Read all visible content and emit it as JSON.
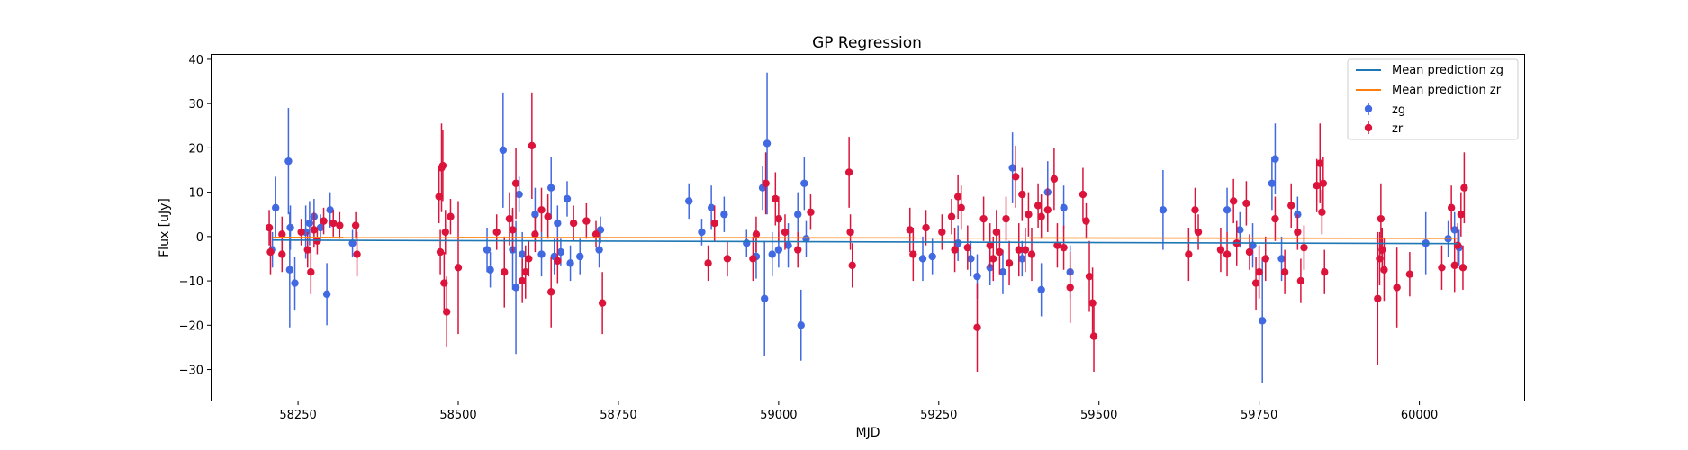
{
  "chart_data": {
    "type": "scatter",
    "title": "GP Regression",
    "xlabel": "MJD",
    "ylabel": "Flux [uJy]",
    "xlim": [
      58115,
      60165
    ],
    "ylim": [
      -37,
      41
    ],
    "x_ticks": [
      58250,
      58500,
      58750,
      59000,
      59250,
      59500,
      59750,
      60000
    ],
    "y_ticks": [
      -30,
      -20,
      -10,
      0,
      10,
      20,
      30,
      40
    ],
    "grid": false,
    "legend_position": "top-right",
    "colors": {
      "zg": "#4169e1",
      "zr": "#dc143c",
      "mean_zg": "#1f77b4",
      "mean_zr": "#ff7f0e"
    },
    "lines": [
      {
        "name": "Mean prediction zg",
        "color": "#1f77b4",
        "x": [
          58210,
          60060
        ],
        "y": [
          -0.8,
          -1.6
        ]
      },
      {
        "name": "Mean prediction zr",
        "color": "#ff7f0e",
        "x": [
          58210,
          60060
        ],
        "y": [
          -0.2,
          -0.4
        ]
      }
    ],
    "series": [
      {
        "name": "zg",
        "color": "#4169e1",
        "points": [
          [
            58210,
            -3,
            4
          ],
          [
            58215,
            6.5,
            7
          ],
          [
            58235,
            17,
            12
          ],
          [
            58237,
            -7.5,
            13
          ],
          [
            58238,
            2,
            5
          ],
          [
            58245,
            -10.5,
            6
          ],
          [
            58262,
            1,
            6
          ],
          [
            58268,
            3,
            5
          ],
          [
            58275,
            4.5,
            4
          ],
          [
            58285,
            2,
            3
          ],
          [
            58295,
            -13,
            7
          ],
          [
            58300,
            6,
            4
          ],
          [
            58335,
            -1.5,
            3
          ],
          [
            58545,
            -3,
            5
          ],
          [
            58550,
            -7.5,
            4
          ],
          [
            58570,
            19.5,
            13
          ],
          [
            58585,
            -3,
            9
          ],
          [
            58590,
            -11.5,
            15
          ],
          [
            58595,
            9.5,
            4
          ],
          [
            58600,
            -4,
            5
          ],
          [
            58620,
            5,
            6
          ],
          [
            58630,
            -4,
            5
          ],
          [
            58645,
            11,
            7
          ],
          [
            58650,
            -4.5,
            4
          ],
          [
            58655,
            3,
            4
          ],
          [
            58660,
            -3.5,
            3
          ],
          [
            58670,
            8.5,
            4
          ],
          [
            58675,
            -6,
            4
          ],
          [
            58690,
            -4.5,
            4
          ],
          [
            58720,
            -3,
            4
          ],
          [
            58722,
            1.5,
            3
          ],
          [
            58860,
            8,
            4
          ],
          [
            58880,
            1,
            3
          ],
          [
            58895,
            6.5,
            5
          ],
          [
            58915,
            5,
            4
          ],
          [
            58950,
            -1.5,
            3
          ],
          [
            58965,
            -4.5,
            5
          ],
          [
            58975,
            11,
            5
          ],
          [
            58978,
            -14,
            13
          ],
          [
            58982,
            21,
            16
          ],
          [
            58990,
            -4,
            5
          ],
          [
            59000,
            -3,
            4
          ],
          [
            59015,
            -2,
            5
          ],
          [
            59030,
            5,
            5
          ],
          [
            59035,
            -20,
            8
          ],
          [
            59040,
            12,
            6
          ],
          [
            59043,
            -0.5,
            4
          ],
          [
            59225,
            -5,
            5
          ],
          [
            59240,
            -4.5,
            4
          ],
          [
            59280,
            -1.5,
            4
          ],
          [
            59300,
            -5,
            4
          ],
          [
            59310,
            -9,
            5
          ],
          [
            59330,
            -7,
            4
          ],
          [
            59350,
            -8,
            5
          ],
          [
            59365,
            15.5,
            8
          ],
          [
            59380,
            -5,
            4
          ],
          [
            59410,
            -12,
            6
          ],
          [
            59420,
            10,
            7
          ],
          [
            59445,
            6.5,
            5
          ],
          [
            59455,
            -8,
            6
          ],
          [
            59600,
            6,
            9
          ],
          [
            59700,
            6,
            5
          ],
          [
            59720,
            1.5,
            4
          ],
          [
            59740,
            -2,
            5
          ],
          [
            59755,
            -19,
            14
          ],
          [
            59770,
            12,
            6
          ],
          [
            59775,
            17.5,
            8
          ],
          [
            59785,
            -5,
            5
          ],
          [
            59810,
            5,
            4
          ],
          [
            60010,
            -1.5,
            7
          ],
          [
            60045,
            -0.5,
            4
          ],
          [
            60055,
            1.5,
            4
          ],
          [
            60062,
            -2.5,
            4
          ]
        ]
      },
      {
        "name": "zr",
        "color": "#dc143c",
        "points": [
          [
            58205,
            2,
            4
          ],
          [
            58207,
            -3.5,
            5
          ],
          [
            58225,
            0.5,
            4
          ],
          [
            58225,
            -4,
            4
          ],
          [
            58255,
            1,
            3
          ],
          [
            58265,
            -3,
            4
          ],
          [
            58270,
            -8,
            5
          ],
          [
            58275,
            1.5,
            4
          ],
          [
            58280,
            -1,
            3
          ],
          [
            58290,
            3.5,
            3
          ],
          [
            58305,
            3,
            3
          ],
          [
            58315,
            2.5,
            3
          ],
          [
            58340,
            2.5,
            3
          ],
          [
            58342,
            -4,
            5
          ],
          [
            58470,
            9,
            6
          ],
          [
            58472,
            -3.5,
            5
          ],
          [
            58474,
            15.5,
            10
          ],
          [
            58476,
            16,
            8
          ],
          [
            58478,
            -10.5,
            7
          ],
          [
            58480,
            1,
            5
          ],
          [
            58482,
            -17,
            8
          ],
          [
            58488,
            4.5,
            4
          ],
          [
            58500,
            -7,
            15
          ],
          [
            58560,
            1,
            4
          ],
          [
            58572,
            -8,
            8
          ],
          [
            58580,
            4,
            6
          ],
          [
            58585,
            1.5,
            5
          ],
          [
            58590,
            12,
            8
          ],
          [
            58600,
            -10,
            5
          ],
          [
            58605,
            -8,
            6
          ],
          [
            58610,
            -5,
            4
          ],
          [
            58615,
            20.5,
            12
          ],
          [
            58620,
            0.5,
            4
          ],
          [
            58630,
            6,
            5
          ],
          [
            58640,
            4.5,
            5
          ],
          [
            58645,
            -12.5,
            8
          ],
          [
            58655,
            -5.5,
            5
          ],
          [
            58680,
            3,
            4
          ],
          [
            58700,
            3.5,
            4
          ],
          [
            58715,
            0.5,
            3
          ],
          [
            58725,
            -15,
            7
          ],
          [
            58890,
            -6,
            4
          ],
          [
            58900,
            3,
            4
          ],
          [
            58920,
            -5,
            4
          ],
          [
            58960,
            -5,
            5
          ],
          [
            58965,
            0.5,
            4
          ],
          [
            58980,
            12,
            7
          ],
          [
            58995,
            8.5,
            6
          ],
          [
            59000,
            4,
            5
          ],
          [
            59010,
            1,
            4
          ],
          [
            59030,
            -3,
            4
          ],
          [
            59050,
            5.5,
            4
          ],
          [
            59110,
            14.5,
            8
          ],
          [
            59112,
            1,
            4
          ],
          [
            59115,
            -6.5,
            5
          ],
          [
            59205,
            1.5,
            5
          ],
          [
            59210,
            -4,
            6
          ],
          [
            59230,
            2,
            4
          ],
          [
            59255,
            1,
            4
          ],
          [
            59270,
            4.5,
            4
          ],
          [
            59275,
            -3,
            5
          ],
          [
            59280,
            9,
            5
          ],
          [
            59285,
            6.5,
            5
          ],
          [
            59295,
            -2.5,
            5
          ],
          [
            59310,
            -20.5,
            10
          ],
          [
            59320,
            4,
            5
          ],
          [
            59330,
            -2,
            5
          ],
          [
            59335,
            -5,
            5
          ],
          [
            59340,
            1,
            5
          ],
          [
            59345,
            -3.5,
            5
          ],
          [
            59355,
            4,
            5
          ],
          [
            59360,
            -6,
            5
          ],
          [
            59370,
            13.5,
            7
          ],
          [
            59375,
            -3,
            6
          ],
          [
            59380,
            9.5,
            6
          ],
          [
            59385,
            -3,
            5
          ],
          [
            59390,
            5,
            5
          ],
          [
            59395,
            -4,
            6
          ],
          [
            59405,
            7,
            5
          ],
          [
            59410,
            4.5,
            5
          ],
          [
            59420,
            6,
            5
          ],
          [
            59430,
            13,
            7
          ],
          [
            59435,
            -2,
            5
          ],
          [
            59445,
            -2.5,
            5
          ],
          [
            59455,
            -11.5,
            8
          ],
          [
            59475,
            9.5,
            6
          ],
          [
            59480,
            3.5,
            4
          ],
          [
            59485,
            -9,
            8
          ],
          [
            59490,
            -15,
            8
          ],
          [
            59492,
            -22.5,
            8
          ],
          [
            59640,
            -4,
            6
          ],
          [
            59650,
            6,
            5
          ],
          [
            59655,
            1,
            4
          ],
          [
            59690,
            -3,
            5
          ],
          [
            59700,
            -4,
            5
          ],
          [
            59710,
            8,
            5
          ],
          [
            59715,
            -1.5,
            5
          ],
          [
            59730,
            7.5,
            5
          ],
          [
            59735,
            -3.5,
            4
          ],
          [
            59745,
            -10.5,
            6
          ],
          [
            59750,
            -8,
            6
          ],
          [
            59760,
            -5,
            5
          ],
          [
            59775,
            4,
            5
          ],
          [
            59790,
            -8,
            5
          ],
          [
            59800,
            7,
            5
          ],
          [
            59810,
            1,
            4
          ],
          [
            59815,
            -10,
            5
          ],
          [
            59820,
            -2.5,
            5
          ],
          [
            59840,
            11.5,
            6
          ],
          [
            59845,
            16.5,
            9
          ],
          [
            59848,
            5.5,
            5
          ],
          [
            59850,
            12,
            6
          ],
          [
            59852,
            -8,
            5
          ],
          [
            59935,
            -14,
            15
          ],
          [
            59938,
            -5,
            6
          ],
          [
            59940,
            4,
            8
          ],
          [
            59942,
            -3,
            5
          ],
          [
            59945,
            -7.5,
            7
          ],
          [
            59965,
            -11.5,
            9
          ],
          [
            59985,
            -8.5,
            5
          ],
          [
            60035,
            -7,
            5
          ],
          [
            60050,
            6.5,
            5
          ],
          [
            60055,
            -6.5,
            6
          ],
          [
            60060,
            -2,
            5
          ],
          [
            60065,
            5,
            5
          ],
          [
            60068,
            -7,
            5
          ],
          [
            60070,
            11,
            8
          ]
        ]
      }
    ],
    "legend": [
      "Mean prediction zg",
      "Mean prediction zr",
      "zg",
      "zr"
    ]
  }
}
